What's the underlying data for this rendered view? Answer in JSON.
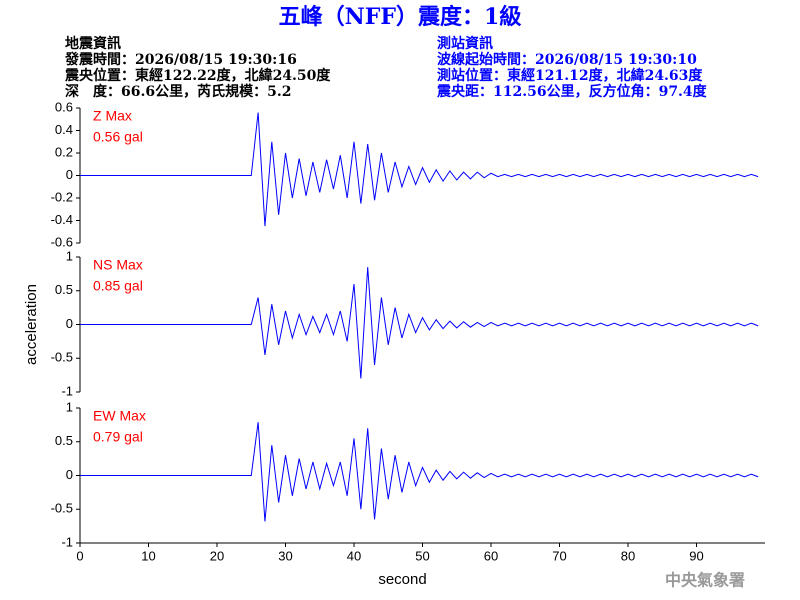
{
  "title": "五峰（NFF）震度：1級",
  "event_info": [
    "地震資訊",
    "發震時間：2026/08/15 19:30:16",
    "震央位置：東經122.22度，北緯24.50度",
    "深　度：66.6公里，芮氏規模：5.2"
  ],
  "station_info": [
    "測站資訊",
    "波線起始時間：2026/08/15 19:30:10",
    "測站位置：東經121.12度，北緯24.63度",
    "震央距：112.56公里，反方位角：97.4度"
  ],
  "footer": "中央氣象署",
  "chart_data": [
    {
      "type": "line",
      "label": "Z Max",
      "max_label": "0.56 gal",
      "color": "#0000ff",
      "label_color": "#ff0000",
      "xlim": [
        0,
        100
      ],
      "ylim": [
        -0.6,
        0.6
      ],
      "yticks": [
        -0.6,
        -0.4,
        -0.2,
        0,
        0.2,
        0.4,
        0.6
      ],
      "x": [
        0,
        1,
        2,
        3,
        4,
        5,
        6,
        7,
        8,
        9,
        10,
        11,
        12,
        13,
        14,
        15,
        16,
        17,
        18,
        19,
        20,
        21,
        22,
        23,
        24,
        25,
        26,
        27,
        28,
        29,
        30,
        31,
        32,
        33,
        34,
        35,
        36,
        37,
        38,
        39,
        40,
        41,
        42,
        43,
        44,
        45,
        46,
        47,
        48,
        49,
        50,
        51,
        52,
        53,
        54,
        55,
        56,
        57,
        58,
        59,
        60,
        61,
        62,
        63,
        64,
        65,
        66,
        67,
        68,
        69,
        70,
        71,
        72,
        73,
        74,
        75,
        76,
        77,
        78,
        79,
        80,
        81,
        82,
        83,
        84,
        85,
        86,
        87,
        88,
        89,
        90,
        91,
        92,
        93,
        94,
        95,
        96,
        97,
        98,
        99
      ],
      "values": [
        0,
        0,
        0,
        0,
        0,
        0,
        0,
        0,
        0,
        0,
        0,
        0,
        0,
        0,
        0,
        0,
        0,
        0,
        0,
        0,
        0,
        0,
        0,
        0,
        0,
        0,
        0.56,
        -0.45,
        0.3,
        -0.35,
        0.2,
        -0.2,
        0.15,
        -0.18,
        0.12,
        -0.15,
        0.14,
        -0.12,
        0.18,
        -0.2,
        0.3,
        -0.25,
        0.28,
        -0.22,
        0.2,
        -0.15,
        0.12,
        -0.1,
        0.08,
        -0.08,
        0.07,
        -0.06,
        0.05,
        -0.05,
        0.04,
        -0.04,
        0.03,
        -0.03,
        0.03,
        -0.02,
        0.02,
        -0.01,
        0.01,
        -0.01,
        0.01,
        -0.01,
        0.01,
        -0.01,
        0.01,
        -0.01,
        0.01,
        -0.01,
        0.01,
        -0.01,
        0.01,
        -0.01,
        0.01,
        -0.01,
        0.01,
        -0.01,
        0.01,
        -0.01,
        0.01,
        -0.01,
        0.01,
        -0.01,
        0.01,
        -0.01,
        0.01,
        -0.01,
        0.01,
        -0.01,
        0.01,
        -0.01,
        0.01,
        -0.01,
        0.01,
        -0.01,
        0.01,
        -0.01
      ]
    },
    {
      "type": "line",
      "label": "NS Max",
      "max_label": "0.85 gal",
      "color": "#0000ff",
      "label_color": "#ff0000",
      "y_label": "acceleration",
      "xlim": [
        0,
        100
      ],
      "ylim": [
        -1,
        1
      ],
      "yticks": [
        -1,
        -0.5,
        0,
        0.5,
        1
      ],
      "x": [
        0,
        1,
        2,
        3,
        4,
        5,
        6,
        7,
        8,
        9,
        10,
        11,
        12,
        13,
        14,
        15,
        16,
        17,
        18,
        19,
        20,
        21,
        22,
        23,
        24,
        25,
        26,
        27,
        28,
        29,
        30,
        31,
        32,
        33,
        34,
        35,
        36,
        37,
        38,
        39,
        40,
        41,
        42,
        43,
        44,
        45,
        46,
        47,
        48,
        49,
        50,
        51,
        52,
        53,
        54,
        55,
        56,
        57,
        58,
        59,
        60,
        61,
        62,
        63,
        64,
        65,
        66,
        67,
        68,
        69,
        70,
        71,
        72,
        73,
        74,
        75,
        76,
        77,
        78,
        79,
        80,
        81,
        82,
        83,
        84,
        85,
        86,
        87,
        88,
        89,
        90,
        91,
        92,
        93,
        94,
        95,
        96,
        97,
        98,
        99
      ],
      "values": [
        0,
        0,
        0,
        0,
        0,
        0,
        0,
        0,
        0,
        0,
        0,
        0,
        0,
        0,
        0,
        0,
        0,
        0,
        0,
        0,
        0,
        0,
        0,
        0,
        0,
        0,
        0.4,
        -0.45,
        0.3,
        -0.3,
        0.2,
        -0.2,
        0.15,
        -0.15,
        0.12,
        -0.12,
        0.15,
        -0.15,
        0.2,
        -0.25,
        0.6,
        -0.8,
        0.85,
        -0.6,
        0.4,
        -0.3,
        0.25,
        -0.2,
        0.15,
        -0.12,
        0.1,
        -0.08,
        0.07,
        -0.06,
        0.05,
        -0.05,
        0.04,
        -0.04,
        0.03,
        -0.03,
        0.03,
        -0.02,
        0.02,
        -0.02,
        0.02,
        -0.02,
        0.02,
        -0.02,
        0.02,
        -0.02,
        0.02,
        -0.02,
        0.02,
        -0.02,
        0.02,
        -0.02,
        0.02,
        -0.02,
        0.02,
        -0.02,
        0.02,
        -0.02,
        0.02,
        -0.02,
        0.02,
        -0.02,
        0.02,
        -0.02,
        0.02,
        -0.02,
        0.02,
        -0.02,
        0.02,
        -0.02,
        0.02,
        -0.02,
        0.02,
        -0.02,
        0.02,
        -0.02
      ]
    },
    {
      "type": "line",
      "label": "EW Max",
      "max_label": "0.79 gal",
      "color": "#0000ff",
      "label_color": "#ff0000",
      "x_label": "second",
      "xlim": [
        0,
        100
      ],
      "ylim": [
        -1,
        1
      ],
      "yticks": [
        -1,
        -0.5,
        0,
        0.5,
        1
      ],
      "xticks": [
        0,
        10,
        20,
        30,
        40,
        50,
        60,
        70,
        80,
        90
      ],
      "x": [
        0,
        1,
        2,
        3,
        4,
        5,
        6,
        7,
        8,
        9,
        10,
        11,
        12,
        13,
        14,
        15,
        16,
        17,
        18,
        19,
        20,
        21,
        22,
        23,
        24,
        25,
        26,
        27,
        28,
        29,
        30,
        31,
        32,
        33,
        34,
        35,
        36,
        37,
        38,
        39,
        40,
        41,
        42,
        43,
        44,
        45,
        46,
        47,
        48,
        49,
        50,
        51,
        52,
        53,
        54,
        55,
        56,
        57,
        58,
        59,
        60,
        61,
        62,
        63,
        64,
        65,
        66,
        67,
        68,
        69,
        70,
        71,
        72,
        73,
        74,
        75,
        76,
        77,
        78,
        79,
        80,
        81,
        82,
        83,
        84,
        85,
        86,
        87,
        88,
        89,
        90,
        91,
        92,
        93,
        94,
        95,
        96,
        97,
        98,
        99
      ],
      "values": [
        0,
        0,
        0,
        0,
        0,
        0,
        0,
        0,
        0,
        0,
        0,
        0,
        0,
        0,
        0,
        0,
        0,
        0,
        0,
        0,
        0,
        0,
        0,
        0,
        0,
        0,
        0.79,
        -0.68,
        0.45,
        -0.4,
        0.3,
        -0.3,
        0.25,
        -0.2,
        0.2,
        -0.2,
        0.18,
        -0.15,
        0.2,
        -0.3,
        0.55,
        -0.5,
        0.7,
        -0.65,
        0.4,
        -0.35,
        0.3,
        -0.25,
        0.2,
        -0.15,
        0.12,
        -0.1,
        0.08,
        -0.07,
        0.06,
        -0.05,
        0.05,
        -0.04,
        0.04,
        -0.03,
        0.03,
        -0.02,
        0.02,
        -0.02,
        0.02,
        -0.02,
        0.02,
        -0.02,
        0.02,
        -0.02,
        0.02,
        -0.02,
        0.02,
        -0.02,
        0.02,
        -0.02,
        0.02,
        -0.02,
        0.02,
        -0.02,
        0.02,
        -0.02,
        0.02,
        -0.02,
        0.02,
        -0.02,
        0.02,
        -0.02,
        0.02,
        -0.02,
        0.02,
        -0.02,
        0.02,
        -0.02,
        0.02,
        -0.02,
        0.02,
        -0.02,
        0.02,
        -0.02
      ]
    }
  ]
}
